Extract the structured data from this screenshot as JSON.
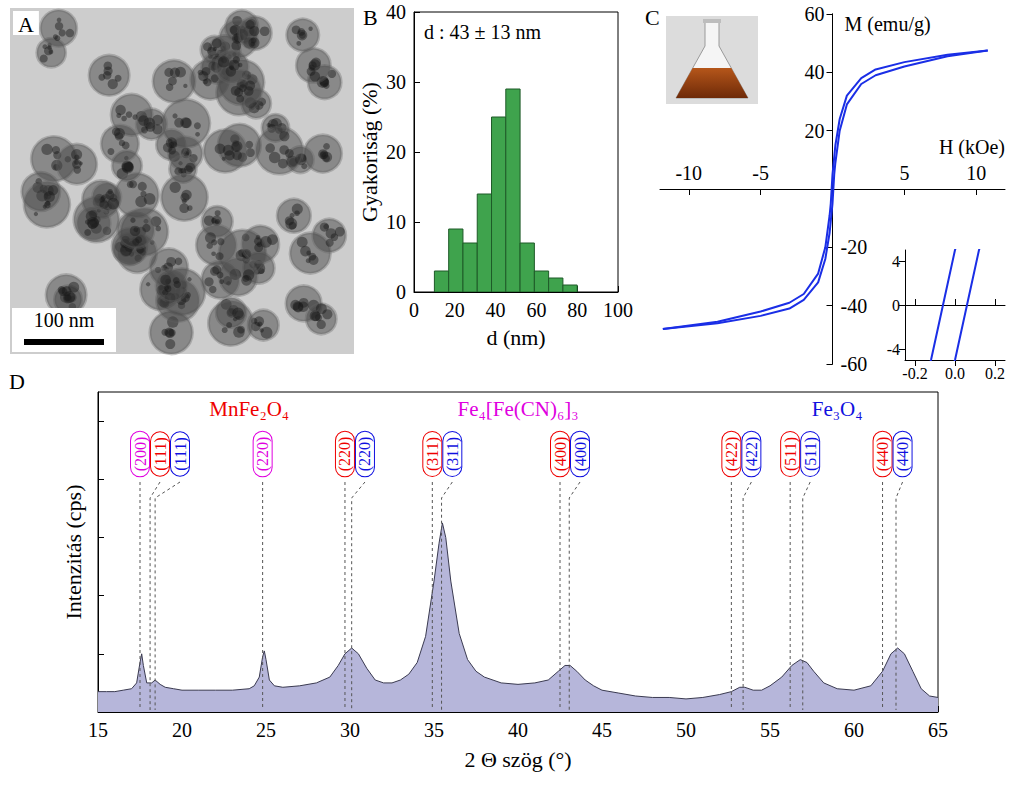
{
  "image_panel": {
    "letter": "A",
    "scale_bar": "100 nm"
  },
  "chart_data": [
    {
      "letter": "B",
      "type": "histogram",
      "xlabel": "d (nm)",
      "ylabel": "Gyakoriság (%)",
      "annotation": "d : 43 ± 13 nm",
      "bins": [
        10,
        17,
        24,
        31,
        38,
        45,
        52,
        59,
        66,
        73,
        80
      ],
      "counts": [
        3,
        9,
        7,
        14,
        25,
        29,
        7,
        3,
        2,
        1
      ],
      "color": "#3fa34d",
      "xlim": [
        0,
        100
      ],
      "xticks": [
        0,
        20,
        40,
        60,
        80,
        100
      ],
      "ylim": [
        0,
        40
      ],
      "yticks": [
        0,
        10,
        20,
        30,
        40
      ],
      "grid": false
    },
    {
      "letter": "C",
      "type": "line",
      "xlabel": "H (kOe)",
      "ylabel": "M (emu/g)",
      "series": [
        {
          "color": "#1a2ee6",
          "x": [
            10.8,
            8,
            5,
            3,
            2,
            1,
            0.5,
            0.2,
            0.1,
            0,
            -0.06,
            -0.12,
            -0.2,
            -0.5,
            -1,
            -2,
            -3,
            -5,
            -8,
            -11.8
          ],
          "values": [
            47.5,
            46,
            43.5,
            41,
            38,
            32,
            24,
            15,
            10,
            5,
            0,
            -5,
            -9,
            -20,
            -29,
            -36,
            -39,
            -42,
            -45.5,
            -48
          ]
        },
        {
          "color": "#1a2ee6",
          "x": [
            -11.8,
            -8,
            -5,
            -3,
            -2,
            -1,
            -0.5,
            -0.2,
            -0.1,
            0,
            0.06,
            0.12,
            0.2,
            0.5,
            1,
            2,
            3,
            5,
            8,
            10.8
          ],
          "values": [
            -48,
            -46,
            -43.5,
            -41,
            -38,
            -32,
            -24,
            -15,
            -10,
            -5,
            0,
            5,
            9,
            20,
            29,
            36,
            39,
            42,
            45.5,
            47.5
          ]
        }
      ],
      "xlim": [
        -12,
        12
      ],
      "xticks": [
        -10,
        -5,
        5,
        10
      ],
      "ylim": [
        -60,
        60
      ],
      "yticks": [
        -60,
        -40,
        -20,
        20,
        40,
        60
      ],
      "grid": false,
      "inset": {
        "xlim": [
          -0.25,
          0.25
        ],
        "xticks": [
          -0.2,
          {
            "value": 0,
            "label": "0.0"
          },
          0.2
        ],
        "ylim": [
          -5,
          5
        ],
        "yticks": [
          -4,
          0,
          4
        ]
      }
    },
    {
      "letter": "D",
      "type": "area",
      "xlabel": "2 Θ szög (°)",
      "ylabel": "Intenzitás (cps)",
      "x": [
        15,
        15.5,
        16,
        16.5,
        17,
        17.3,
        17.5,
        17.6,
        17.7,
        17.9,
        18.2,
        18.4,
        18.7,
        19,
        19.5,
        20,
        21,
        22,
        23,
        24,
        24.3,
        24.6,
        24.8,
        24.9,
        25,
        25.2,
        25.5,
        26,
        27,
        28,
        28.8,
        29.3,
        29.7,
        30.1,
        30.5,
        31,
        31.5,
        32,
        32.5,
        33,
        33.5,
        34,
        34.5,
        35,
        35.3,
        35.5,
        35.7,
        36,
        36.5,
        37,
        37.5,
        38,
        39,
        40,
        41,
        41.8,
        42.4,
        42.8,
        43.1,
        43.5,
        44,
        44.5,
        45,
        46,
        47,
        48,
        49,
        50,
        51,
        52,
        52.7,
        53.2,
        53.5,
        54,
        54.5,
        55,
        55.7,
        56.3,
        56.8,
        57.2,
        57.6,
        58.2,
        59,
        60,
        61,
        61.7,
        62.2,
        62.6,
        63,
        63.5,
        64,
        64.5,
        65
      ],
      "values": [
        7,
        7,
        7,
        7.5,
        8,
        10,
        17,
        20,
        16,
        10,
        10,
        11,
        9.5,
        8.5,
        8,
        7.5,
        7.5,
        7.5,
        7.5,
        8,
        9,
        12,
        19,
        21,
        18,
        11,
        9,
        8.5,
        9,
        10,
        12,
        16,
        20,
        22,
        20,
        15,
        11,
        10,
        10,
        11,
        13,
        17,
        26,
        45,
        58,
        65,
        60,
        45,
        27,
        18,
        14,
        12,
        10,
        9.5,
        10,
        11,
        14,
        16,
        16,
        14,
        11,
        9,
        7.5,
        6.5,
        5.5,
        5,
        5,
        4.5,
        5,
        6,
        7,
        8.5,
        8.5,
        7.5,
        7.5,
        9,
        12,
        16,
        18,
        17,
        14,
        10,
        8,
        7.5,
        9,
        14,
        20,
        22,
        20,
        14,
        8,
        5.5,
        5
      ],
      "color": "#b6b6da",
      "xlim": [
        15,
        65
      ],
      "xticks": [
        15,
        20,
        25,
        30,
        35,
        40,
        45,
        50,
        55,
        60,
        65
      ],
      "ylim": [
        0,
        110
      ],
      "yticks": [
        0,
        20,
        40,
        60,
        80,
        100
      ],
      "tick_labels": "x",
      "grid": false,
      "phases": [
        {
          "name": "MnFe₂O₄",
          "color": "#ee0000",
          "peaks": [
            {
              "label": "(111)",
              "x": 18.1
            },
            {
              "label": "(220)",
              "x": 29.7
            },
            {
              "label": "(311)",
              "x": 34.9
            },
            {
              "label": "(400)",
              "x": 42.5
            },
            {
              "label": "(422)",
              "x": 52.7
            },
            {
              "label": "(511)",
              "x": 56.2
            },
            {
              "label": "(440)",
              "x": 61.7
            }
          ]
        },
        {
          "name": "Fe₄[Fe(CN)₆]₃",
          "color": "#e000e0",
          "peaks": [
            {
              "label": "(200)",
              "x": 17.5
            },
            {
              "label": "(220)",
              "x": 24.8
            }
          ]
        },
        {
          "name": "Fe₃O₄",
          "color": "#1010e0",
          "peaks": [
            {
              "label": "(111)",
              "x": 18.4
            },
            {
              "label": "(220)",
              "x": 30.1
            },
            {
              "label": "(311)",
              "x": 35.45
            },
            {
              "label": "(400)",
              "x": 43.05
            },
            {
              "label": "(422)",
              "x": 53.4
            },
            {
              "label": "(511)",
              "x": 56.95
            },
            {
              "label": "(440)",
              "x": 62.5
            }
          ]
        }
      ]
    }
  ]
}
